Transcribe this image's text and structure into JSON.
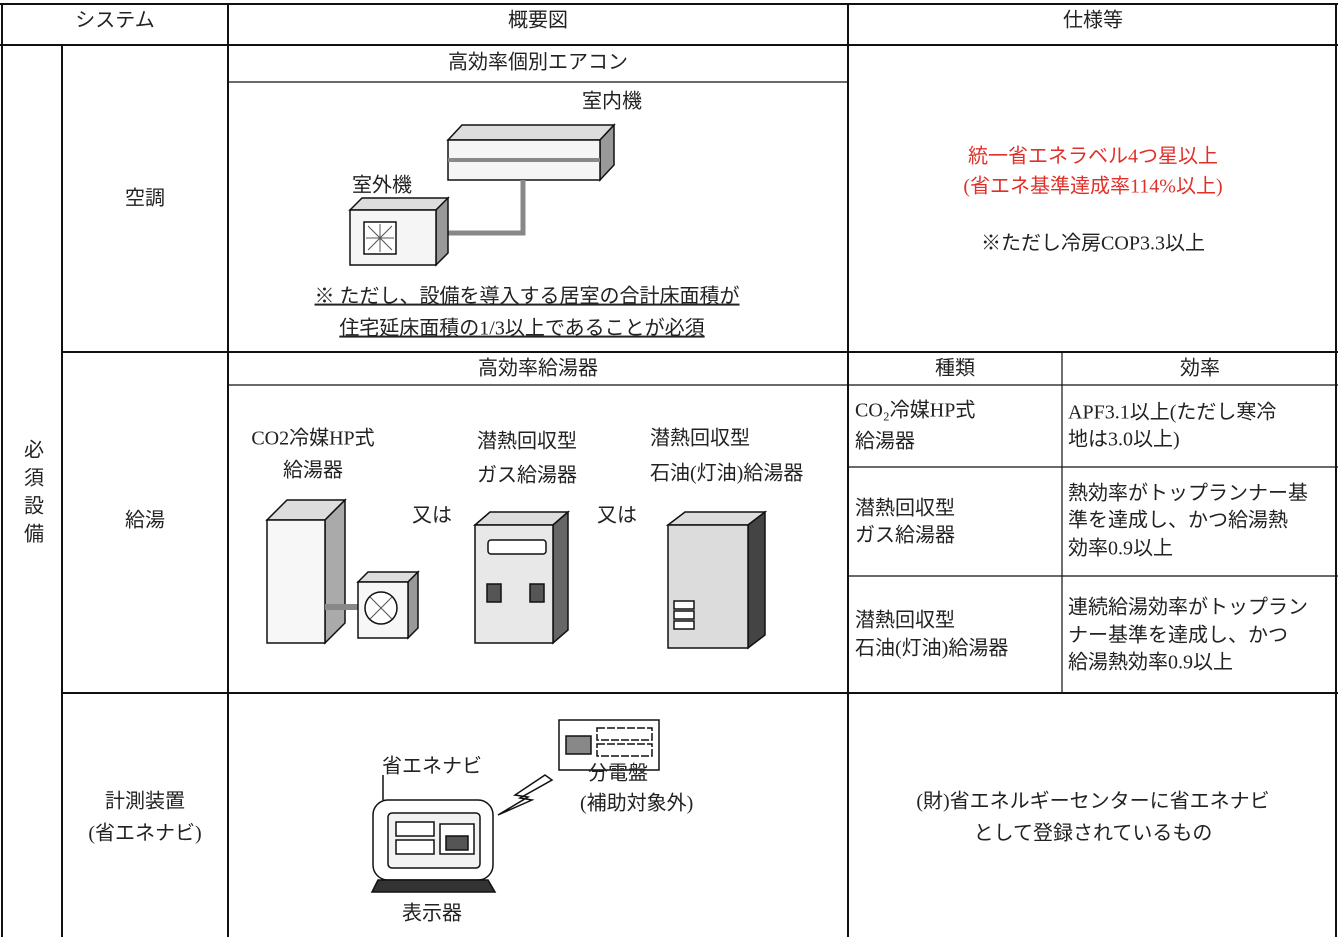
{
  "header": {
    "system": "システム",
    "diagram": "概要図",
    "spec": "仕様等"
  },
  "side_label": [
    "必",
    "須",
    "設",
    "備"
  ],
  "rows": [
    {
      "system": [
        "空調"
      ],
      "diagram_title": "高効率個別エアコン",
      "labels": [
        "室内機",
        "室外機"
      ],
      "note": [
        "※ ただし、設備を導入する居室の合計床面積が",
        "住宅延床面積の1/3以上であることが必須"
      ],
      "spec_red": [
        "統一省エネラベル4つ星以上",
        "(省エネ基準達成率114%以上)"
      ],
      "spec": [
        "※ただし冷房COP3.3以上"
      ]
    },
    {
      "system": [
        "給湯"
      ],
      "diagram_title": "高効率給湯器",
      "labels": [
        [
          "CO2冷媒HP式",
          "給湯器"
        ],
        [
          "潜熱回収型",
          "ガス給湯器"
        ],
        [
          "潜熱回収型",
          "石油(灯油)給湯器"
        ]
      ],
      "or": [
        "又は",
        "又は"
      ],
      "spec_table": {
        "header": [
          "種類",
          "効率"
        ],
        "rows": [
          [
            [
              "CO₂冷媒HP式",
              "給湯器"
            ],
            [
              "APF3.1以上(ただし寒冷",
              "地は3.0以上)"
            ]
          ],
          [
            [
              "潜熱回収型",
              "ガス給湯器"
            ],
            [
              "熱効率がトップランナー基",
              "準を達成し、かつ給湯熱",
              "効率0.9以上"
            ]
          ],
          [
            [
              "潜熱回収型",
              "石油(灯油)給湯器"
            ],
            [
              "連続給湯効率がトップラン",
              "ナー基準を達成し、かつ",
              "給湯熱効率0.9以上"
            ]
          ]
        ]
      }
    },
    {
      "system": [
        "計測装置",
        "(省エネナビ)"
      ],
      "labels": [
        "省エネナビ",
        "分電盤",
        "(補助対象外)",
        "表示器"
      ],
      "spec": [
        "(財)省エネルギーセンターに省エネナビ",
        "として登録されているもの"
      ]
    }
  ]
}
